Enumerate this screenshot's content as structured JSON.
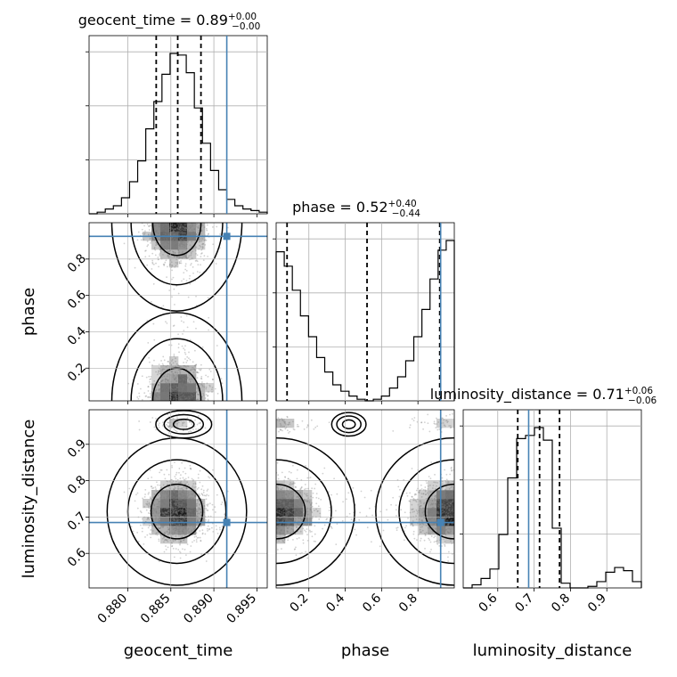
{
  "chart_data": {
    "type": "corner",
    "parameters": [
      "geocent_time",
      "phase",
      "luminosity_distance"
    ],
    "ranges": {
      "geocent_time": [
        0.8755,
        0.8962
      ],
      "phase": [
        0.02,
        1.0
      ],
      "luminosity_distance": [
        0.505,
        0.995
      ]
    },
    "ticks": {
      "geocent_time": [
        "0.880",
        "0.885",
        "0.890",
        "0.895"
      ],
      "phase": [
        "0.2",
        "0.4",
        "0.6",
        "0.8"
      ],
      "luminosity_distance": [
        "0.6",
        "0.7",
        "0.8",
        "0.9"
      ]
    },
    "truths": {
      "geocent_time": 0.8915,
      "phase": 0.925,
      "luminosity_distance": 0.685
    },
    "titles": [
      {
        "prefix": "geocent_time = 0.89",
        "sup": "+0.00",
        "sub": "−0.00"
      },
      {
        "prefix": "phase = 0.52",
        "sup": "+0.40",
        "sub": "−0.44"
      },
      {
        "prefix": "luminosity_distance = 0.71",
        "sup": "+0.06",
        "sub": "−0.06"
      }
    ],
    "quantiles": {
      "geocent_time": [
        0.8833,
        0.8858,
        0.8885
      ],
      "phase": [
        0.08,
        0.52,
        0.92
      ],
      "luminosity_distance": [
        0.655,
        0.715,
        0.77
      ]
    },
    "histograms": {
      "geocent_time": [
        0,
        1,
        3,
        5,
        10,
        20,
        33,
        53,
        70,
        87,
        100,
        99,
        88,
        66,
        44,
        27,
        15,
        9,
        5,
        3,
        2,
        1
      ],
      "phase": [
        93,
        84,
        69,
        53,
        40,
        27,
        18,
        10,
        6,
        3,
        1,
        0,
        1,
        3,
        8,
        15,
        25,
        40,
        57,
        76,
        94,
        100
      ],
      "luminosity_distance": [
        0,
        2,
        6,
        12,
        34,
        70,
        95,
        97,
        102,
        94,
        38,
        3,
        0,
        0,
        1,
        4,
        10,
        13,
        11,
        4
      ]
    },
    "grid": true
  }
}
